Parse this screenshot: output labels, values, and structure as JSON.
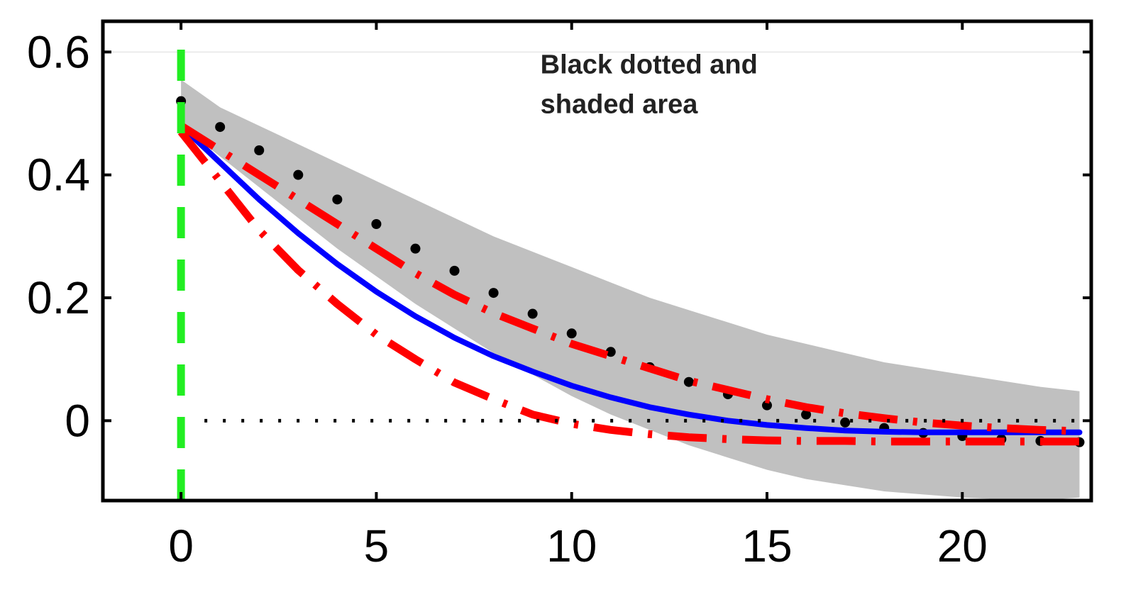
{
  "chart_data": {
    "type": "line",
    "title": "",
    "xlabel": "",
    "ylabel": "",
    "xlim": [
      -2,
      23.3
    ],
    "ylim": [
      -0.13,
      0.65
    ],
    "x_ticks": [
      0,
      5,
      10,
      15,
      20
    ],
    "y_ticks": [
      0,
      0.2,
      0.4,
      0.6
    ],
    "x_tick_labels": [
      "0",
      "5",
      "10",
      "15",
      "20"
    ],
    "y_tick_labels": [
      "0",
      "0.2",
      "0.4",
      "0.6"
    ],
    "grid": false,
    "annotations": [
      {
        "lines": [
          "Black dotted and",
          "shaded area"
        ],
        "x": 9.2,
        "y": 0.565
      }
    ],
    "series": [
      {
        "style": "shaded-band",
        "color": "#c0c0c0",
        "x": [
          0,
          1,
          2,
          3,
          4,
          5,
          6,
          7,
          8,
          9,
          10,
          11,
          12,
          13,
          14,
          15,
          16,
          17,
          18,
          19,
          20,
          21,
          22,
          23
        ],
        "lower": [
          0.48,
          0.43,
          0.38,
          0.33,
          0.28,
          0.235,
          0.19,
          0.15,
          0.11,
          0.075,
          0.04,
          0.01,
          -0.015,
          -0.04,
          -0.06,
          -0.08,
          -0.095,
          -0.105,
          -0.115,
          -0.12,
          -0.125,
          -0.128,
          -0.13,
          -0.125
        ],
        "upper": [
          0.555,
          0.51,
          0.48,
          0.45,
          0.42,
          0.39,
          0.36,
          0.33,
          0.3,
          0.275,
          0.25,
          0.225,
          0.2,
          0.18,
          0.16,
          0.14,
          0.125,
          0.11,
          0.095,
          0.085,
          0.075,
          0.065,
          0.055,
          0.048
        ]
      },
      {
        "style": "dots",
        "color": "#000000",
        "x": [
          0,
          1,
          2,
          3,
          4,
          5,
          6,
          7,
          8,
          9,
          10,
          11,
          12,
          13,
          14,
          15,
          16,
          17,
          18,
          19,
          20,
          21,
          22,
          23
        ],
        "y": [
          0.52,
          0.478,
          0.44,
          0.4,
          0.36,
          0.32,
          0.28,
          0.244,
          0.208,
          0.174,
          0.142,
          0.112,
          0.087,
          0.063,
          0.043,
          0.025,
          0.01,
          -0.003,
          -0.012,
          -0.02,
          -0.025,
          -0.03,
          -0.033,
          -0.035
        ]
      },
      {
        "style": "solid",
        "color": "#0000ff",
        "x": [
          0,
          1,
          2,
          3,
          4,
          5,
          6,
          7,
          8,
          9,
          10,
          11,
          12,
          13,
          14,
          15,
          16,
          17,
          18,
          19,
          20,
          21,
          22,
          23
        ],
        "y": [
          0.48,
          0.42,
          0.36,
          0.305,
          0.255,
          0.21,
          0.17,
          0.135,
          0.105,
          0.08,
          0.057,
          0.038,
          0.022,
          0.01,
          0.0,
          -0.007,
          -0.012,
          -0.016,
          -0.018,
          -0.019,
          -0.019,
          -0.019,
          -0.019,
          -0.019
        ]
      },
      {
        "style": "dash-dot",
        "color": "#ff0000",
        "x": [
          0,
          1,
          2,
          3,
          4,
          5,
          6,
          7,
          8,
          9,
          10,
          11,
          12,
          13,
          14,
          15,
          16,
          17,
          18,
          19,
          20,
          21,
          22,
          23
        ],
        "y": [
          0.48,
          0.44,
          0.4,
          0.36,
          0.32,
          0.28,
          0.24,
          0.205,
          0.175,
          0.15,
          0.125,
          0.105,
          0.085,
          0.065,
          0.05,
          0.035,
          0.022,
          0.012,
          0.004,
          -0.003,
          -0.008,
          -0.012,
          -0.015,
          -0.017
        ]
      },
      {
        "style": "dash-dot",
        "color": "#ff0000",
        "x": [
          0,
          1,
          2,
          3,
          4,
          5,
          6,
          7,
          8,
          9,
          10,
          11,
          12,
          13,
          14,
          15,
          16,
          17,
          18,
          19,
          20,
          21,
          22,
          23
        ],
        "y": [
          0.47,
          0.39,
          0.31,
          0.245,
          0.19,
          0.14,
          0.1,
          0.062,
          0.035,
          0.01,
          -0.005,
          -0.015,
          -0.022,
          -0.027,
          -0.03,
          -0.032,
          -0.033,
          -0.033,
          -0.034,
          -0.034,
          -0.034,
          -0.034,
          -0.034,
          -0.034
        ]
      },
      {
        "style": "zero-line",
        "color": "#000000",
        "x": [
          0.6,
          23
        ],
        "y": [
          0,
          0
        ]
      },
      {
        "style": "vertical-line",
        "color": "#22ee22",
        "x": [
          0,
          0
        ],
        "y": [
          -0.13,
          0.62
        ]
      }
    ]
  }
}
